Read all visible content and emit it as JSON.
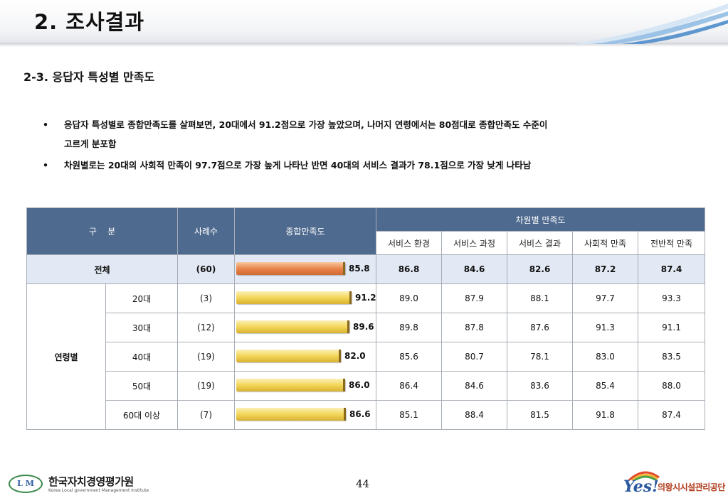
{
  "header": {
    "title": "2. 조사결과"
  },
  "section": {
    "title": "2-3. 응답자 특성별 만족도"
  },
  "bullets": [
    {
      "line1": "응답자 특성별로 종합만족도를 살펴보면, 20대에서 91.2점으로 가장 높았으며, 나머지 연령에서는 80점대로 종합만족도 수준이",
      "line2": "고르게 분포함"
    },
    {
      "line1": "차원별로는 20대의 사회적 만족이 97.7점으로 가장 높게 나타난 반면 40대의 서비스 결과가 78.1점으로 가장 낮게 나타남",
      "line2": ""
    }
  ],
  "bullet_symbol": "•",
  "table": {
    "headers": {
      "category": "구    분",
      "cases": "사례수",
      "overall": "종합만족도",
      "dimension_group": "차원별 만족도",
      "dimensions": [
        "서비스 환경",
        "서비스 과정",
        "서비스 결과",
        "사회적 만족",
        "전반적 만족"
      ]
    },
    "total_row": {
      "label": "전체",
      "cases": "(60)",
      "overall": 85.8,
      "overall_text": "85.8",
      "dims": [
        "86.8",
        "84.6",
        "82.6",
        "87.2",
        "87.4"
      ]
    },
    "group": {
      "label": "연령별"
    },
    "rows": [
      {
        "label": "20대",
        "cases": "(3)",
        "overall": 91.2,
        "overall_text": "91.2",
        "dims": [
          "89.0",
          "87.9",
          "88.1",
          "97.7",
          "93.3"
        ]
      },
      {
        "label": "30대",
        "cases": "(12)",
        "overall": 89.6,
        "overall_text": "89.6",
        "dims": [
          "89.8",
          "87.8",
          "87.6",
          "91.3",
          "91.1"
        ]
      },
      {
        "label": "40대",
        "cases": "(19)",
        "overall": 82.0,
        "overall_text": "82.0",
        "dims": [
          "85.6",
          "80.7",
          "78.1",
          "83.0",
          "83.5"
        ]
      },
      {
        "label": "50대",
        "cases": "(19)",
        "overall": 86.0,
        "overall_text": "86.0",
        "dims": [
          "86.4",
          "84.6",
          "83.6",
          "85.4",
          "88.0"
        ]
      },
      {
        "label": "60대 이상",
        "cases": "(7)",
        "overall": 86.6,
        "overall_text": "86.6",
        "dims": [
          "85.1",
          "88.4",
          "81.5",
          "91.8",
          "87.4"
        ]
      }
    ],
    "colors": {
      "header_bg": "#4f6a8f",
      "total_row_bg": "#e3e9f4",
      "bar_gold": "#f3d75a",
      "bar_orange": "#e9864c"
    }
  },
  "footer": {
    "left_logo_mark": "L M",
    "left_org_ko": "한국자치경영평가원",
    "left_org_en": "Korea Local government Management Institute",
    "page_number": "44",
    "right_logo_mark": "Yes!",
    "right_org": "의왕시시설관리공단"
  }
}
